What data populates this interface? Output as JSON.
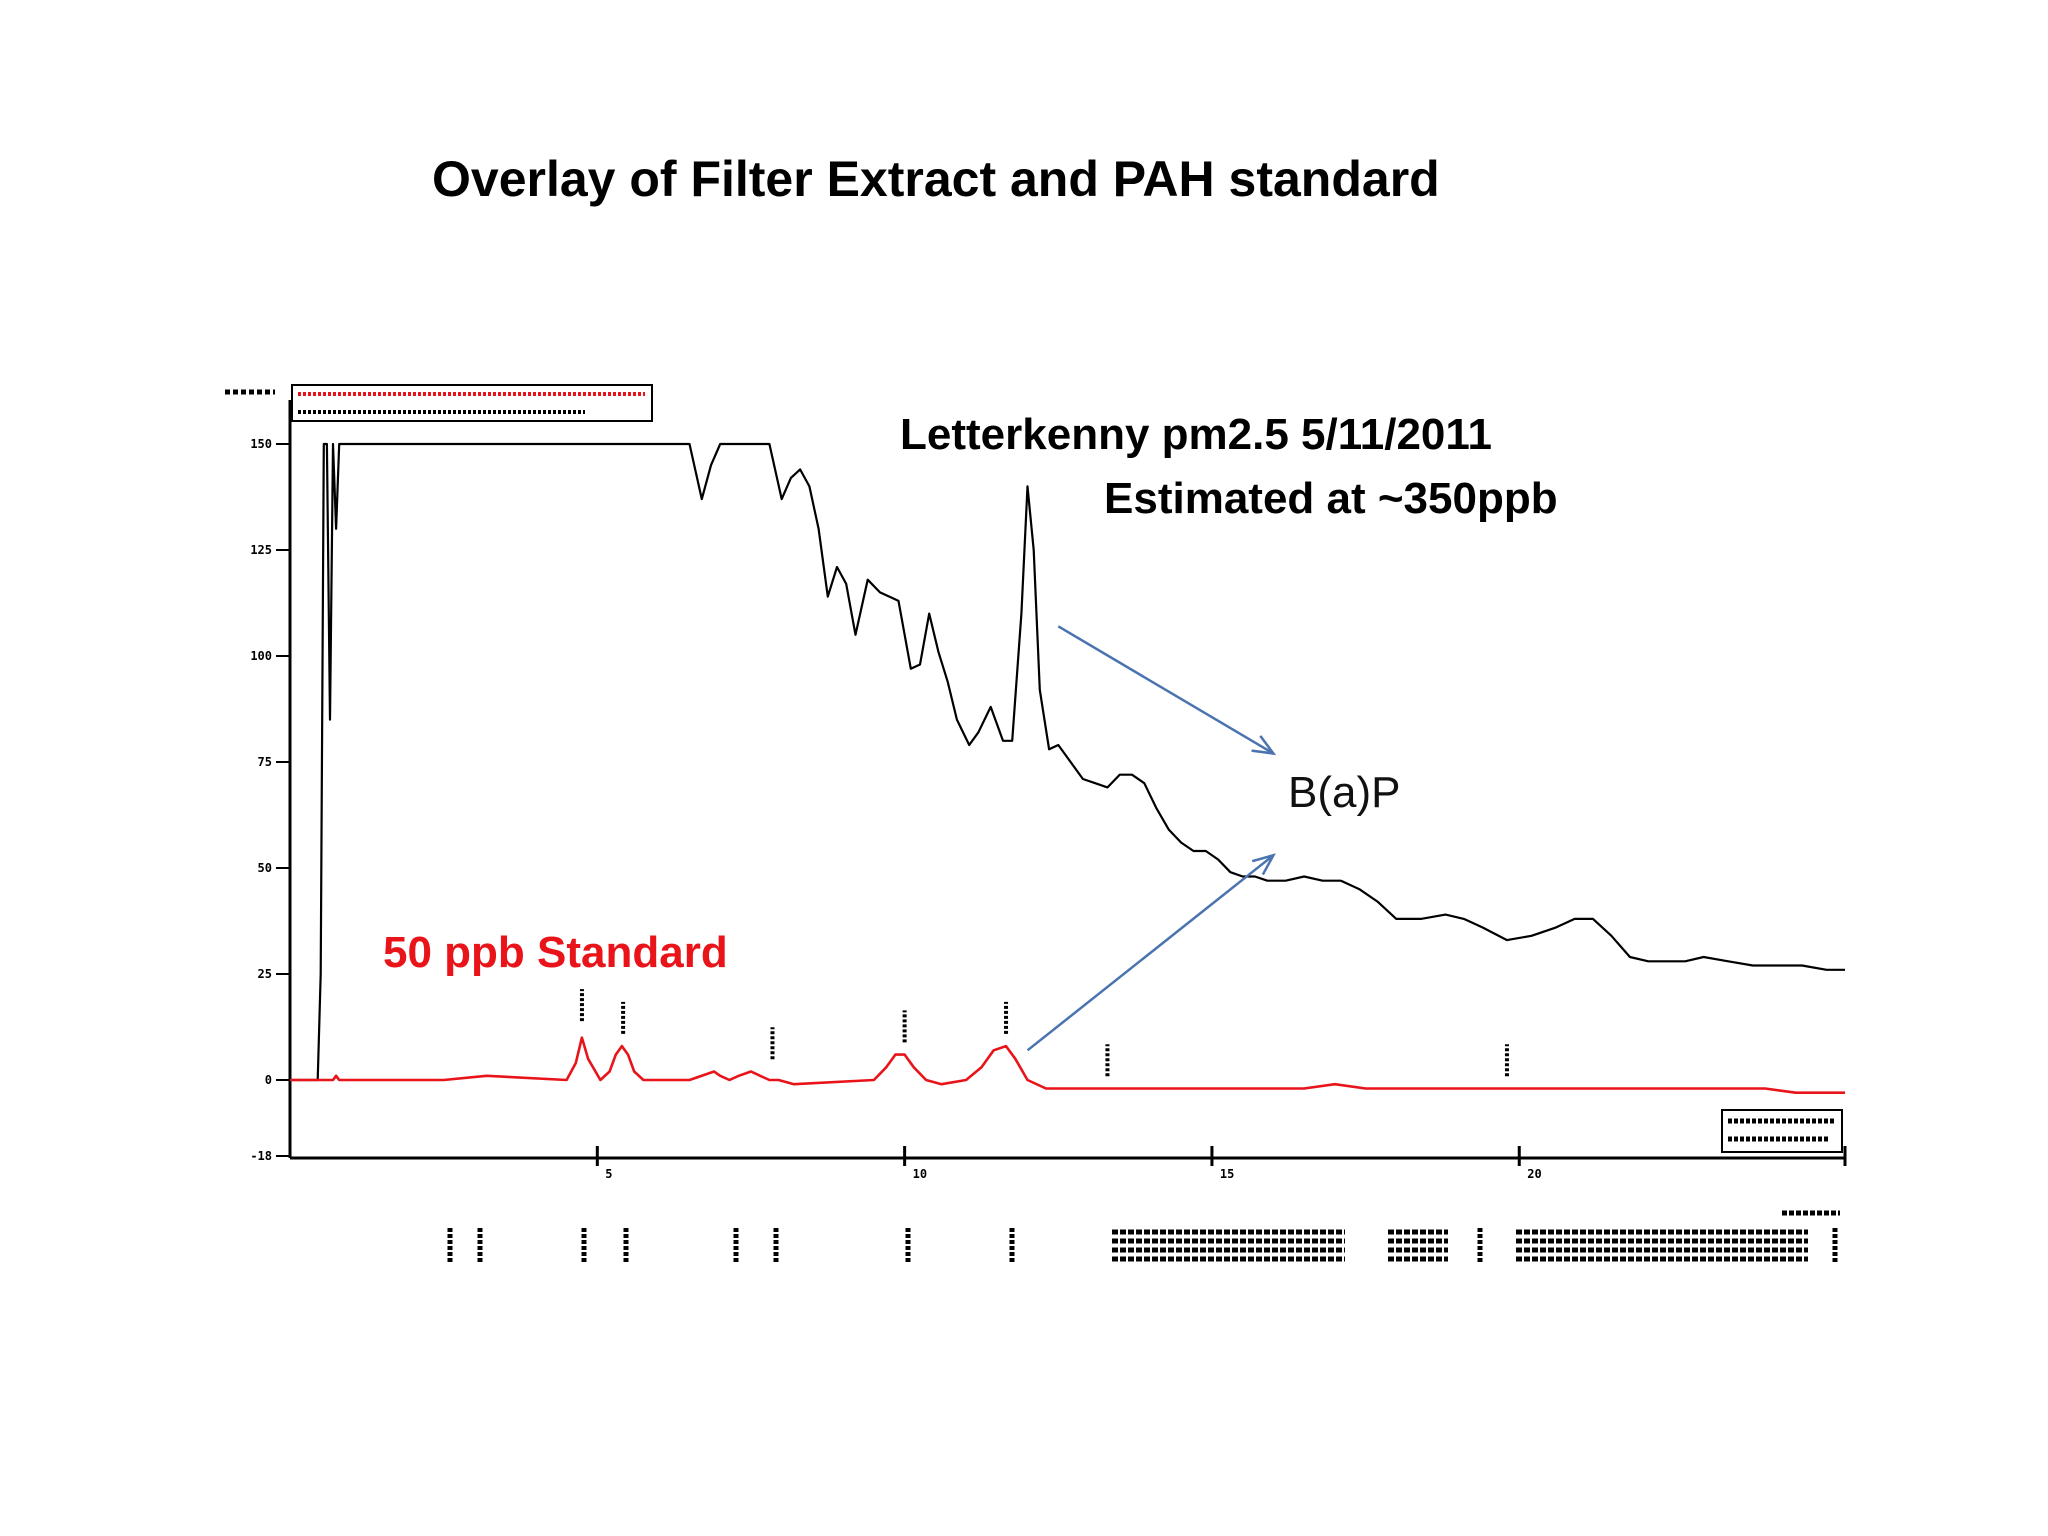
{
  "slide": {
    "title": "Overlay of Filter Extract and PAH standard",
    "sample_note_line1": "Letterkenny  pm2.5  5/11/2011",
    "sample_note_line2": "Estimated at ~350ppb",
    "standard_label": "50 ppb Standard",
    "peak_callout": "B(a)P"
  },
  "colors": {
    "sample_trace": "#000000",
    "standard_trace": "#e8141a",
    "callout_arrow": "#4a73b0",
    "standard_label": "#e8141a"
  },
  "chart_data": {
    "type": "line",
    "title": "",
    "xlabel": "",
    "ylabel": "",
    "xlim": [
      0,
      25.3
    ],
    "ylim": [
      -18,
      160
    ],
    "y_ticks": [
      "150",
      "125",
      "100",
      "75",
      "50",
      "25",
      "0",
      "-18"
    ],
    "x_ticks": [
      "5",
      "10",
      "15",
      "20"
    ],
    "grid": false,
    "legend": "top-left",
    "clipped_at": 150,
    "series": [
      {
        "color": "#000000",
        "x": [
          0,
          0.45,
          0.5,
          0.55,
          0.6,
          0.65,
          0.7,
          0.75,
          0.8,
          0.9,
          5.0,
          6.5,
          6.7,
          6.85,
          7.0,
          7.4,
          7.8,
          8.0,
          8.15,
          8.3,
          8.45,
          8.6,
          8.75,
          8.9,
          9.05,
          9.2,
          9.4,
          9.6,
          9.75,
          9.9,
          10.1,
          10.25,
          10.4,
          10.55,
          10.7,
          10.85,
          11.05,
          11.2,
          11.4,
          11.6,
          11.75,
          11.9,
          12.0,
          12.1,
          12.2,
          12.35,
          12.5,
          12.7,
          12.9,
          13.1,
          13.3,
          13.5,
          13.7,
          13.9,
          14.1,
          14.3,
          14.5,
          14.7,
          14.9,
          15.1,
          15.3,
          15.5,
          15.7,
          15.9,
          16.2,
          16.5,
          16.8,
          17.1,
          17.4,
          17.7,
          18.0,
          18.4,
          18.8,
          19.1,
          19.4,
          19.8,
          20.2,
          20.6,
          20.9,
          21.2,
          21.5,
          21.8,
          22.1,
          22.4,
          22.7,
          23.0,
          23.4,
          23.8,
          24.2,
          24.6,
          25.0,
          25.3
        ],
        "y": [
          0,
          0,
          25,
          150,
          150,
          85,
          150,
          130,
          150,
          150,
          150,
          150,
          137,
          145,
          150,
          150,
          150,
          137,
          142,
          144,
          140,
          130,
          114,
          121,
          117,
          105,
          118,
          115,
          114,
          113,
          97,
          98,
          110,
          101,
          94,
          85,
          79,
          82,
          88,
          80,
          80,
          110,
          140,
          125,
          92,
          78,
          79,
          75,
          71,
          70,
          69,
          72,
          72,
          70,
          64,
          59,
          56,
          54,
          54,
          52,
          49,
          48,
          48,
          47,
          47,
          48,
          47,
          47,
          45,
          42,
          38,
          38,
          39,
          38,
          36,
          33,
          34,
          36,
          38,
          38,
          34,
          29,
          28,
          28,
          28,
          29,
          28,
          27,
          27,
          27,
          26,
          26
        ]
      },
      {
        "color": "#e8141a",
        "x": [
          0,
          0.7,
          0.75,
          0.8,
          2.5,
          3.2,
          4.5,
          4.65,
          4.75,
          4.85,
          5.05,
          5.2,
          5.3,
          5.4,
          5.5,
          5.6,
          5.75,
          5.95,
          6.5,
          6.9,
          7.0,
          7.15,
          7.3,
          7.5,
          7.65,
          7.8,
          7.95,
          8.2,
          9.5,
          9.7,
          9.85,
          10.0,
          10.15,
          10.35,
          10.6,
          11.0,
          11.25,
          11.45,
          11.65,
          11.8,
          12.0,
          12.3,
          13.5,
          15.0,
          16.5,
          17.0,
          17.5,
          18.0,
          20.0,
          24.0,
          24.5,
          25.3
        ],
        "y": [
          0,
          0,
          1,
          0,
          0,
          1,
          0,
          4,
          10,
          5,
          0,
          2,
          6,
          8,
          6,
          2,
          0,
          0,
          0,
          2,
          1,
          0,
          1,
          2,
          1,
          0,
          0,
          -1,
          0,
          3,
          6,
          6,
          3,
          0,
          -1,
          0,
          3,
          7,
          8,
          5,
          0,
          -2,
          -2,
          -2,
          -2,
          -1,
          -2,
          -2,
          -2,
          -2,
          -3,
          -3
        ]
      }
    ],
    "arrows": [
      {
        "from": [
          12.5,
          107
        ],
        "to": [
          16.0,
          77
        ]
      },
      {
        "from": [
          12.0,
          7
        ],
        "to": [
          16.0,
          53
        ]
      }
    ]
  }
}
